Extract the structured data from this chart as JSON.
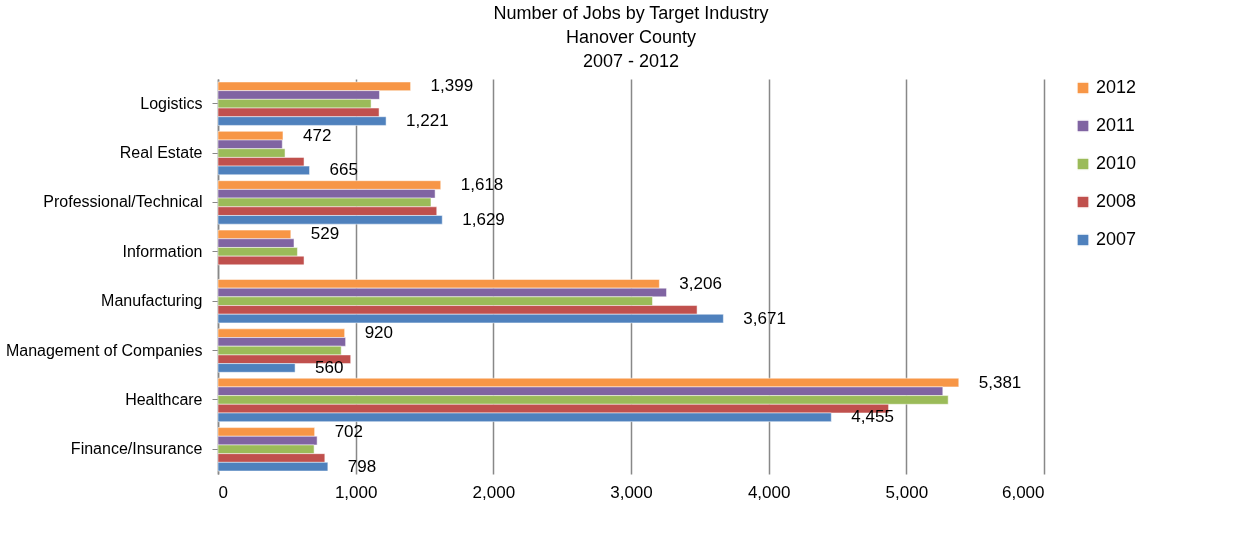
{
  "chart_data": {
    "type": "bar",
    "orientation": "horizontal",
    "title": "Number of Jobs by Target Industry",
    "subtitle": "Hanover County\n2007 - 2012",
    "categories": [
      "Logistics",
      "Real Estate",
      "Professional/Technical",
      "Information",
      "Manufacturing",
      "Management of Companies",
      "Healthcare",
      "Finance/Insurance"
    ],
    "series": [
      {
        "name": "2012",
        "color": "#f79646",
        "values": [
          1399,
          472,
          1618,
          529,
          3206,
          920,
          5381,
          702
        ],
        "value_labels": [
          "1,399",
          "472",
          "1,618",
          "529",
          "3,206",
          "920",
          "5,381",
          "702"
        ]
      },
      {
        "name": "2011",
        "color": "#8064a2",
        "values": [
          1173,
          467,
          1577,
          552,
          3258,
          927,
          5265,
          720
        ]
      },
      {
        "name": "2010",
        "color": "#9bbb59",
        "values": [
          1112,
          487,
          1547,
          577,
          3156,
          895,
          5304,
          698
        ]
      },
      {
        "name": "2008",
        "color": "#c0504d",
        "values": [
          1170,
          625,
          1589,
          625,
          3480,
          964,
          4871,
          776
        ]
      },
      {
        "name": "2007",
        "color": "#4f81bd",
        "values": [
          1221,
          665,
          1629,
          null,
          3671,
          560,
          4455,
          798
        ],
        "value_labels": [
          "1,221",
          "665",
          "1,629",
          null,
          "3,671",
          "560",
          "4,455",
          "798"
        ]
      }
    ],
    "xlim": [
      0,
      6000
    ],
    "xticks": [
      {
        "value": 0,
        "label": "0"
      },
      {
        "value": 1000,
        "label": "1,000"
      },
      {
        "value": 2000,
        "label": "2,000"
      },
      {
        "value": 3000,
        "label": "3,000"
      },
      {
        "value": 4000,
        "label": "4,000"
      },
      {
        "value": 5000,
        "label": "5,000"
      },
      {
        "value": 6000,
        "label": "6,000"
      }
    ],
    "grid": "x",
    "legend": "right"
  }
}
